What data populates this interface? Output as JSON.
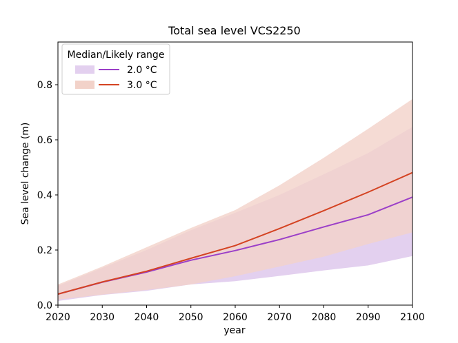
{
  "chart_data": {
    "type": "line",
    "title": "Total sea level VCS2250",
    "xlabel": "year",
    "ylabel": "Sea level change (m)",
    "xlim": [
      2020,
      2100
    ],
    "ylim": [
      0.0,
      0.955
    ],
    "xticks": [
      2020,
      2030,
      2040,
      2050,
      2060,
      2070,
      2080,
      2090,
      2100
    ],
    "xtick_labels": [
      "2020",
      "2030",
      "2040",
      "2050",
      "2060",
      "2070",
      "2080",
      "2090",
      "2100"
    ],
    "yticks": [
      0.0,
      0.2,
      0.4,
      0.6,
      0.8
    ],
    "ytick_labels": [
      "0.0",
      "0.2",
      "0.4",
      "0.6",
      "0.8"
    ],
    "grid": false,
    "legend": {
      "title": "Median/Likely range",
      "placement": "top-left"
    },
    "x": [
      2020,
      2030,
      2040,
      2050,
      2060,
      2070,
      2080,
      2090,
      2100
    ],
    "series": [
      {
        "name": "2.0 °C",
        "color": "#9b3fc8",
        "band_color": "#e3d0ef",
        "median": [
          0.04,
          0.083,
          0.12,
          0.163,
          0.198,
          0.238,
          0.284,
          0.328,
          0.392
        ],
        "likely_low": [
          0.015,
          0.037,
          0.052,
          0.075,
          0.087,
          0.106,
          0.126,
          0.144,
          0.178
        ],
        "likely_high": [
          0.07,
          0.135,
          0.2,
          0.272,
          0.335,
          0.4,
          0.475,
          0.552,
          0.647
        ]
      },
      {
        "name": "3.0 °C",
        "color": "#d44322",
        "band_color": "#f2d2c9",
        "median": [
          0.04,
          0.084,
          0.123,
          0.17,
          0.216,
          0.278,
          0.343,
          0.41,
          0.481
        ],
        "likely_low": [
          0.02,
          0.038,
          0.055,
          0.075,
          0.105,
          0.14,
          0.176,
          0.222,
          0.264
        ],
        "likely_high": [
          0.075,
          0.14,
          0.21,
          0.28,
          0.345,
          0.435,
          0.535,
          0.64,
          0.748
        ]
      }
    ]
  }
}
